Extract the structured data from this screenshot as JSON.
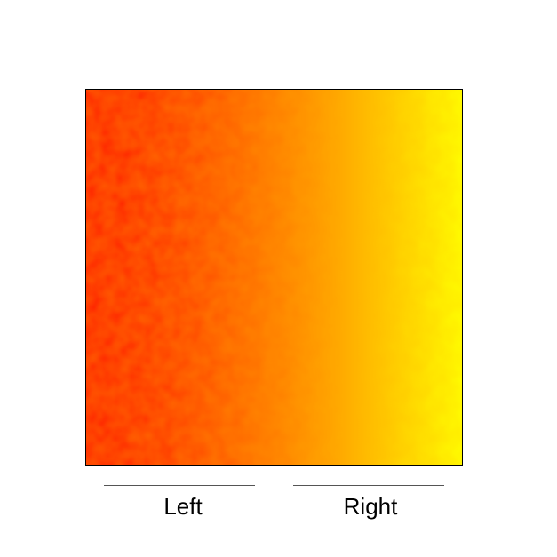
{
  "stimulus": {
    "gradient_from_color": "#ff0000",
    "gradient_mid_color": "#ff8800",
    "gradient_to_color": "#ffff00",
    "border_color": "#000000"
  },
  "labels": {
    "left": "Left",
    "right": "Right"
  }
}
